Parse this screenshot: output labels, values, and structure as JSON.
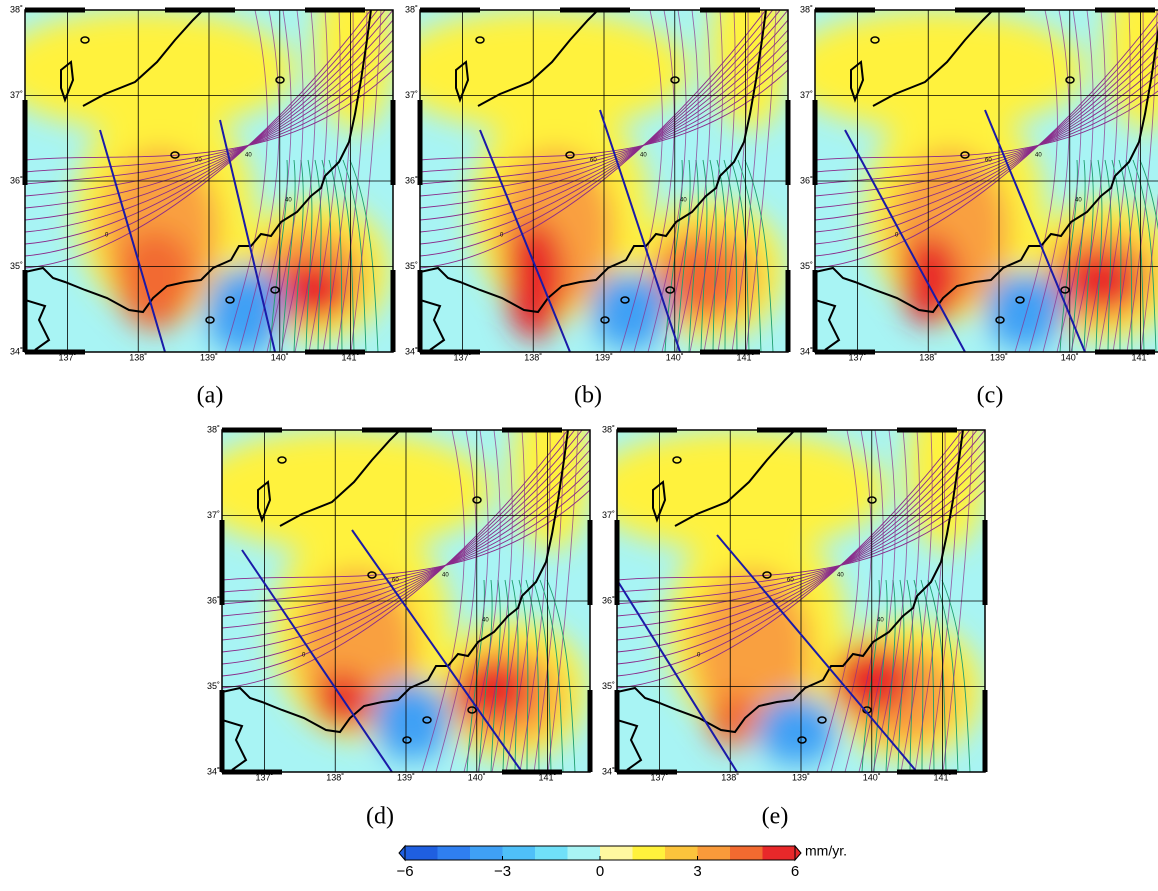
{
  "panels": [
    {
      "label": "(a)"
    },
    {
      "label": "(b)"
    },
    {
      "label": "(c)"
    },
    {
      "label": "(d)"
    },
    {
      "label": "(e)"
    }
  ],
  "map": {
    "xlim": [
      136.4,
      141.6
    ],
    "ylim": [
      34,
      38
    ],
    "lat_ticks": [
      {
        "value": 34,
        "label": "34˚"
      },
      {
        "value": 35,
        "label": "35˚"
      },
      {
        "value": 36,
        "label": "36˚"
      },
      {
        "value": 37,
        "label": "37˚"
      },
      {
        "value": 38,
        "label": "38˚"
      }
    ],
    "lon_ticks": [
      {
        "value": 137,
        "label": "137˚"
      },
      {
        "value": 138,
        "label": "138˚"
      },
      {
        "value": 139,
        "label": "139˚"
      },
      {
        "value": 140,
        "label": "140˚"
      },
      {
        "value": 141,
        "label": "141˚"
      }
    ],
    "contour_labels": [
      60,
      40,
      40,
      0
    ]
  },
  "colorbar": {
    "range": [
      -6,
      6
    ],
    "colors": [
      "#1f5fe0",
      "#2f7ff0",
      "#3fa0f5",
      "#4fc0f8",
      "#70e0f8",
      "#a8f4f4",
      "#fff8a0",
      "#fff23c",
      "#fcc43c",
      "#f99a3a",
      "#f26a30",
      "#e8282a"
    ],
    "ticks": [
      {
        "value": -6,
        "label": "−6"
      },
      {
        "value": -3,
        "label": "−3"
      },
      0,
      3,
      6
    ],
    "unit": "mm/yr."
  }
}
